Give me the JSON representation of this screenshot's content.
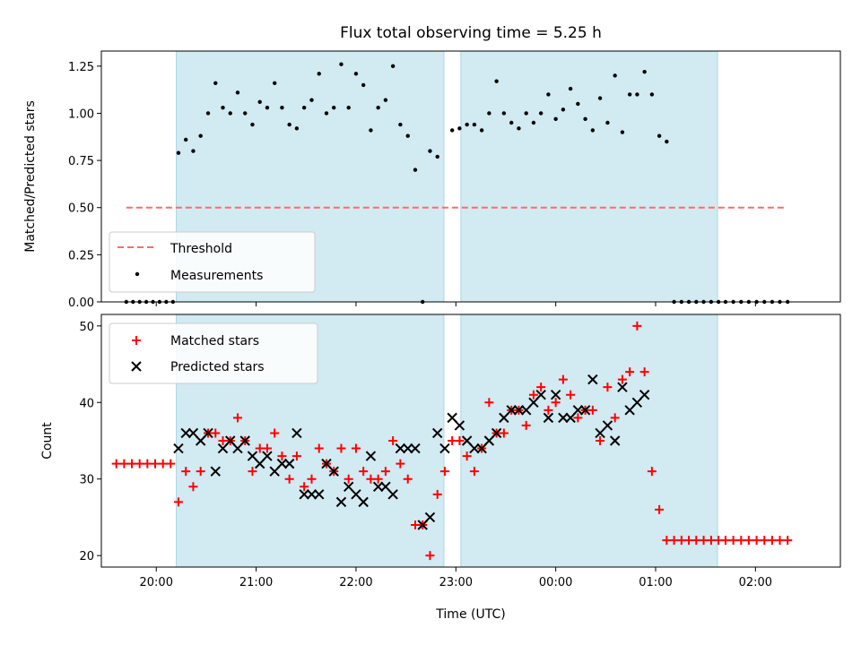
{
  "chart_data": {
    "title": "Flux total observing time = 5.25 h",
    "xlabel": "Time (UTC)",
    "x_tick_labels": [
      "20:00",
      "21:00",
      "22:00",
      "23:00",
      "00:00",
      "01:00",
      "02:00"
    ],
    "x_range_hours": [
      -0.55,
      6.85
    ],
    "observing_windows_hours": [
      [
        0.2,
        2.88
      ],
      [
        3.05,
        5.62
      ]
    ],
    "colors": {
      "window_fill": "#add8e6",
      "threshold": "#ff6b6b",
      "measurements": "#000000",
      "matched": "#ff0000",
      "predicted": "#000000"
    },
    "panels": [
      {
        "type": "scatter",
        "ylabel": "Matched/Predicted stars",
        "ylim": [
          0,
          1.33
        ],
        "y_ticks": [
          0,
          0.25,
          0.5,
          0.75,
          1.0,
          1.25
        ],
        "y_tick_labels": [
          "0.00",
          "0.25",
          "0.50",
          "0.75",
          "1.00",
          "1.25"
        ],
        "threshold": {
          "name": "Threshold",
          "value": 0.5,
          "x_from": -0.3,
          "x_to": 6.3
        },
        "legend_position": "lower-left",
        "legend": [
          "Threshold",
          "Measurements"
        ],
        "series": [
          {
            "name": "Measurements",
            "marker": "dot",
            "x": [
              -0.3,
              -0.233,
              -0.167,
              -0.1,
              -0.033,
              0.033,
              0.1,
              0.167,
              0.222,
              0.296,
              0.37,
              0.444,
              0.519,
              0.593,
              0.667,
              0.741,
              0.815,
              0.889,
              0.963,
              1.037,
              1.111,
              1.185,
              1.259,
              1.333,
              1.407,
              1.481,
              1.556,
              1.63,
              1.704,
              1.778,
              1.852,
              1.926,
              2.0,
              2.074,
              2.148,
              2.222,
              2.296,
              2.37,
              2.444,
              2.519,
              2.593,
              2.667,
              2.741,
              2.815,
              2.963,
              3.037,
              3.111,
              3.185,
              3.259,
              3.333,
              3.407,
              3.481,
              3.556,
              3.63,
              3.704,
              3.778,
              3.852,
              3.926,
              4.0,
              4.074,
              4.148,
              4.222,
              4.296,
              4.37,
              4.444,
              4.519,
              4.593,
              4.667,
              4.741,
              4.815,
              4.889,
              4.963,
              5.037,
              5.111,
              5.185,
              5.259,
              5.333,
              5.407,
              5.481,
              5.556,
              5.63,
              5.7,
              5.778,
              5.856,
              5.933,
              6.011,
              6.089,
              6.167,
              6.244,
              6.322
            ],
            "y": [
              0,
              0,
              0,
              0,
              0,
              0,
              0,
              0,
              0.79,
              0.86,
              0.8,
              0.88,
              1.0,
              1.16,
              1.03,
              1.0,
              1.11,
              1.0,
              0.94,
              1.06,
              1.03,
              1.16,
              1.03,
              0.94,
              0.92,
              1.03,
              1.07,
              1.21,
              1.0,
              1.03,
              1.26,
              1.03,
              1.21,
              1.15,
              0.91,
              1.03,
              1.07,
              1.25,
              0.94,
              0.88,
              0.7,
              0,
              0.8,
              0.77,
              0.91,
              0.92,
              0.94,
              0.94,
              0.91,
              1.0,
              1.17,
              1.0,
              0.95,
              0.92,
              1.0,
              0.95,
              1.0,
              1.1,
              0.97,
              1.02,
              1.13,
              1.05,
              0.97,
              0.91,
              1.08,
              0.95,
              1.2,
              0.9,
              1.1,
              1.1,
              1.22,
              1.1,
              0.88,
              0.85,
              0,
              0,
              0,
              0,
              0,
              0,
              0,
              0,
              0,
              0,
              0,
              0,
              0,
              0,
              0,
              0
            ]
          }
        ]
      },
      {
        "type": "scatter",
        "ylabel": "Count",
        "ylim": [
          18.5,
          51.5
        ],
        "y_ticks": [
          20,
          30,
          40,
          50
        ],
        "y_tick_labels": [
          "20",
          "30",
          "40",
          "50"
        ],
        "legend_position": "upper-left",
        "legend": [
          "Matched stars",
          "Predicted stars"
        ],
        "series": [
          {
            "name": "Matched stars",
            "marker": "plus",
            "x": [
              -0.4,
              -0.322,
              -0.244,
              -0.167,
              -0.089,
              -0.011,
              0.067,
              0.144,
              0.222,
              0.296,
              0.37,
              0.444,
              0.519,
              0.593,
              0.667,
              0.741,
              0.815,
              0.889,
              0.963,
              1.037,
              1.111,
              1.185,
              1.259,
              1.333,
              1.407,
              1.481,
              1.556,
              1.63,
              1.704,
              1.778,
              1.852,
              1.926,
              2.0,
              2.074,
              2.148,
              2.222,
              2.296,
              2.37,
              2.444,
              2.519,
              2.593,
              2.667,
              2.741,
              2.815,
              2.889,
              2.963,
              3.037,
              3.111,
              3.185,
              3.259,
              3.333,
              3.407,
              3.481,
              3.556,
              3.63,
              3.704,
              3.778,
              3.852,
              3.926,
              4.0,
              4.074,
              4.148,
              4.222,
              4.296,
              4.37,
              4.444,
              4.519,
              4.593,
              4.667,
              4.741,
              4.815,
              4.889,
              4.963,
              5.037,
              5.111,
              5.185,
              5.259,
              5.333,
              5.407,
              5.481,
              5.556,
              5.63,
              5.7,
              5.778,
              5.856,
              5.933,
              6.011,
              6.089,
              6.167,
              6.244,
              6.322
            ],
            "y": [
              32,
              32,
              32,
              32,
              32,
              32,
              32,
              32,
              27,
              31,
              29,
              31,
              36,
              36,
              35,
              35,
              38,
              35,
              31,
              34,
              34,
              36,
              33,
              30,
              33,
              29,
              30,
              34,
              32,
              31,
              34,
              30,
              34,
              31,
              30,
              30,
              31,
              35,
              32,
              30,
              24,
              24,
              20,
              28,
              31,
              35,
              35,
              33,
              31,
              34,
              40,
              36,
              36,
              39,
              39,
              37,
              41,
              42,
              39,
              40,
              43,
              41,
              38,
              39,
              39,
              35,
              42,
              38,
              43,
              44,
              50,
              44,
              31,
              26,
              22,
              22,
              22,
              22,
              22,
              22,
              22,
              22,
              22,
              22,
              22,
              22,
              22,
              22,
              22,
              22,
              22
            ],
            "_note": ""
          },
          {
            "name": "Predicted stars",
            "marker": "cross",
            "x": [
              0.222,
              0.296,
              0.37,
              0.444,
              0.519,
              0.593,
              0.667,
              0.741,
              0.815,
              0.889,
              0.963,
              1.037,
              1.111,
              1.185,
              1.259,
              1.333,
              1.407,
              1.481,
              1.556,
              1.63,
              1.704,
              1.778,
              1.852,
              1.926,
              2.0,
              2.074,
              2.148,
              2.222,
              2.296,
              2.37,
              2.444,
              2.519,
              2.593,
              2.667,
              2.741,
              2.815,
              2.889,
              2.963,
              3.037,
              3.111,
              3.185,
              3.259,
              3.333,
              3.407,
              3.481,
              3.556,
              3.63,
              3.704,
              3.778,
              3.852,
              3.926,
              4.0,
              4.074,
              4.148,
              4.222,
              4.296,
              4.37,
              4.444,
              4.519,
              4.593,
              4.667,
              4.741,
              4.815,
              4.889
            ],
            "y": [
              34,
              36,
              36,
              35,
              36,
              31,
              34,
              35,
              34,
              35,
              33,
              32,
              33,
              31,
              32,
              32,
              36,
              28,
              28,
              28,
              32,
              31,
              27,
              29,
              28,
              27,
              33,
              29,
              29,
              28,
              34,
              34,
              34,
              24,
              25,
              36,
              34,
              38,
              37,
              35,
              34,
              34,
              35,
              36,
              38,
              39,
              39,
              39,
              40,
              41,
              38,
              41,
              38,
              38,
              39,
              39,
              43,
              36,
              37,
              35,
              42,
              39,
              40,
              41
            ],
            "_note": ""
          }
        ]
      }
    ]
  }
}
